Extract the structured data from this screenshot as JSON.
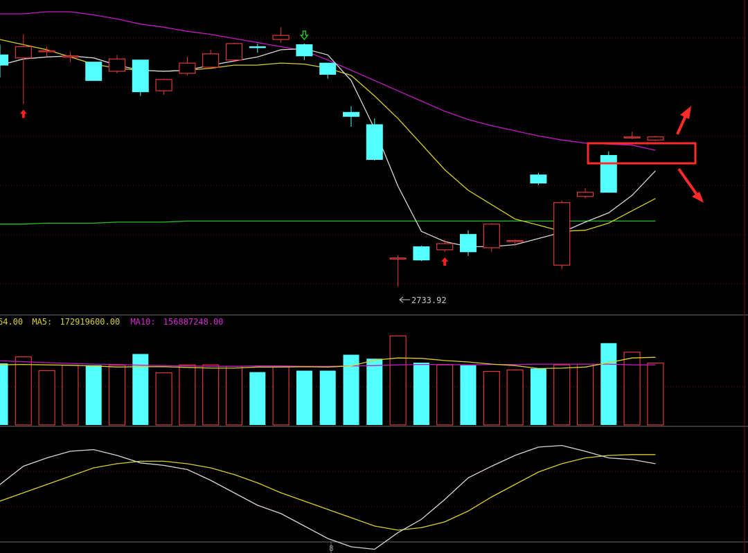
{
  "colors": {
    "background": "#000000",
    "up": "#e03a3a",
    "down": "#54ffff",
    "ma_white": "#d8d8d8",
    "ma_yellow": "#d9d028",
    "ma_magenta": "#c21ac2",
    "ma_green": "#22c422",
    "grid": "#7a0a0a",
    "divider": "#6b6b6b",
    "annotation": "#ff2b2b",
    "signal_buy": "#ff2020",
    "signal_sell": "#22cc22"
  },
  "volume_legend": {
    "prefix": "64.00",
    "ma5_label": "MA5:",
    "ma5_value": "172919600.00",
    "ma10_label": "MA10:",
    "ma10_value": "156887248.00"
  },
  "low_annotation": "2733.92",
  "x_tick": "8",
  "chart_data": {
    "type": "candlestick",
    "price": {
      "ylim": [
        2720,
        3000
      ],
      "candles": [
        {
          "o": 2960,
          "h": 2970,
          "l": 2938,
          "c": 2950
        },
        {
          "o": 2957,
          "h": 2980,
          "l": 2912,
          "c": 2968
        },
        {
          "o": 2964,
          "h": 2968,
          "l": 2958,
          "c": 2964
        },
        {
          "o": 2959,
          "h": 2963,
          "l": 2953,
          "c": 2959
        },
        {
          "o": 2953,
          "h": 2953,
          "l": 2935,
          "c": 2935
        },
        {
          "o": 2944,
          "h": 2960,
          "l": 2942,
          "c": 2956
        },
        {
          "o": 2955,
          "h": 2955,
          "l": 2920,
          "c": 2924
        },
        {
          "o": 2925,
          "h": 2937,
          "l": 2921,
          "c": 2936
        },
        {
          "o": 2942,
          "h": 2958,
          "l": 2940,
          "c": 2952
        },
        {
          "o": 2948,
          "h": 2965,
          "l": 2946,
          "c": 2961
        },
        {
          "o": 2955,
          "h": 2972,
          "l": 2953,
          "c": 2971
        },
        {
          "o": 2968,
          "h": 2971,
          "l": 2962,
          "c": 2967
        },
        {
          "o": 2975,
          "h": 2987,
          "l": 2972,
          "c": 2979
        },
        {
          "o": 2970,
          "h": 2971,
          "l": 2955,
          "c": 2959
        },
        {
          "o": 2952,
          "h": 2952,
          "l": 2937,
          "c": 2941
        },
        {
          "o": 2904,
          "h": 2910,
          "l": 2890,
          "c": 2900
        },
        {
          "o": 2892,
          "h": 2898,
          "l": 2857,
          "c": 2858
        },
        {
          "o": 2762,
          "h": 2765,
          "l": 2733.92,
          "c": 2762
        },
        {
          "o": 2773,
          "h": 2774,
          "l": 2759,
          "c": 2760
        },
        {
          "o": 2770,
          "h": 2780,
          "l": 2768,
          "c": 2776
        },
        {
          "o": 2785,
          "h": 2789,
          "l": 2764,
          "c": 2768
        },
        {
          "o": 2772,
          "h": 2796,
          "l": 2768,
          "c": 2795
        },
        {
          "o": 2779,
          "h": 2780,
          "l": 2774,
          "c": 2779
        },
        {
          "o": 2843,
          "h": 2845,
          "l": 2833,
          "c": 2835
        },
        {
          "o": 2755,
          "h": 2818,
          "l": 2751,
          "c": 2816
        },
        {
          "o": 2822,
          "h": 2830,
          "l": 2820,
          "c": 2826
        },
        {
          "o": 2862,
          "h": 2866,
          "l": 2826,
          "c": 2826
        },
        {
          "o": 2879,
          "h": 2885,
          "l": 2878,
          "c": 2880
        },
        {
          "o": 2877,
          "h": 2881,
          "l": 2876,
          "c": 2880
        }
      ],
      "ma_white": [
        2950,
        2956,
        2958,
        2959,
        2957,
        2950,
        2945,
        2944,
        2945,
        2950,
        2954,
        2958,
        2965,
        2966,
        2960,
        2935,
        2888,
        2832,
        2788,
        2778,
        2773,
        2773,
        2775,
        2781,
        2787,
        2797,
        2806,
        2823,
        2847
      ],
      "ma_yellow": [
        2975,
        2970,
        2965,
        2958,
        2951,
        2947,
        2945,
        2944,
        2945,
        2947,
        2950,
        2950,
        2952,
        2951,
        2947,
        2940,
        2920,
        2898,
        2873,
        2848,
        2828,
        2814,
        2800,
        2794,
        2788,
        2789,
        2796,
        2808,
        2820
      ],
      "ma_magenta": [
        3000,
        3000,
        3002,
        3002,
        2999,
        2995,
        2990,
        2987,
        2983,
        2980,
        2976,
        2972,
        2968,
        2964,
        2955,
        2945,
        2935,
        2925,
        2915,
        2905,
        2897,
        2891,
        2886,
        2881,
        2877,
        2874,
        2873,
        2872,
        2867
      ],
      "ma_green": [
        2795,
        2795,
        2796,
        2796,
        2796,
        2797,
        2797,
        2797,
        2798,
        2798,
        2798,
        2798,
        2798,
        2798,
        2798,
        2798,
        2798,
        2798,
        2798,
        2798,
        2798,
        2798,
        2798,
        2798,
        2798,
        2798,
        2798,
        2798,
        2798
      ],
      "signals": [
        {
          "index": 1,
          "type": "buy"
        },
        {
          "index": 13,
          "type": "sell"
        },
        {
          "index": 19,
          "type": "buy"
        }
      ]
    },
    "volume": {
      "ylim": [
        0,
        260000000
      ],
      "values": [
        170000000,
        188000000,
        150000000,
        165000000,
        165000000,
        165000000,
        196000000,
        144000000,
        166000000,
        166000000,
        162000000,
        146000000,
        160000000,
        150000000,
        150000000,
        194000000,
        183000000,
        246000000,
        172000000,
        166000000,
        165000000,
        148000000,
        152000000,
        156000000,
        166000000,
        168000000,
        226000000,
        201000000,
        171000000
      ],
      "ma5": [
        166000000,
        167000000,
        166000000,
        165000000,
        163000000,
        160000000,
        161000000,
        161000000,
        159000000,
        157000000,
        157000000,
        160000000,
        160000000,
        161000000,
        160000000,
        163000000,
        179000000,
        185000000,
        184000000,
        178000000,
        174000000,
        168000000,
        164000000,
        156000000,
        157000000,
        160000000,
        172000000,
        185000000,
        187000000
      ],
      "ma10": [
        177000000,
        175000000,
        172000000,
        170000000,
        168000000,
        167000000,
        165000000,
        164000000,
        163000000,
        162000000,
        162000000,
        163000000,
        163000000,
        162000000,
        162000000,
        163000000,
        164000000,
        166000000,
        167000000,
        167000000,
        166000000,
        167000000,
        167000000,
        168000000,
        168000000,
        168000000,
        168000000,
        166000000,
        166000000
      ]
    },
    "oscillator": {
      "ylim": [
        0,
        100
      ],
      "fast": [
        60,
        82,
        92,
        100,
        102,
        95,
        86,
        83,
        78,
        65,
        50,
        35,
        25,
        10,
        -5,
        -15,
        -18,
        2,
        18,
        42,
        68,
        82,
        95,
        105,
        107,
        100,
        92,
        90,
        85
      ],
      "slow": [
        40,
        50,
        60,
        70,
        80,
        85,
        88,
        88,
        85,
        80,
        72,
        62,
        50,
        40,
        30,
        20,
        10,
        5,
        8,
        15,
        28,
        45,
        60,
        75,
        85,
        92,
        95,
        96,
        96
      ]
    }
  }
}
